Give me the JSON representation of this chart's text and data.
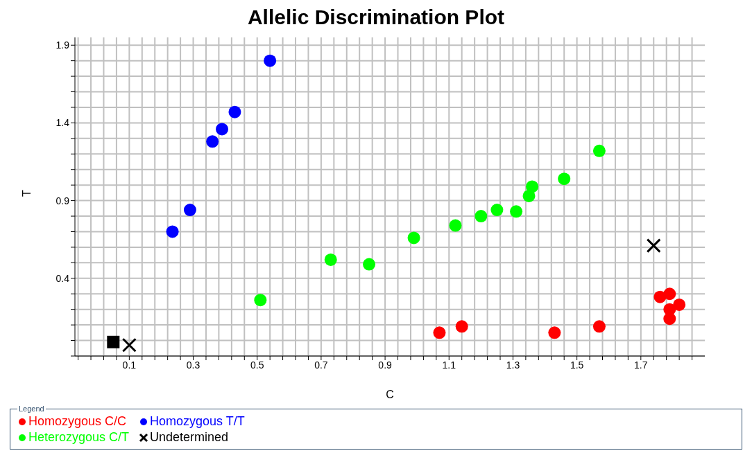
{
  "chart_data": {
    "type": "scatter",
    "title": "Allelic Discrimination Plot",
    "xlabel": "C",
    "ylabel": "T",
    "legend_title": "Legend",
    "legend": "bottom",
    "grid": true,
    "marker": "circle",
    "xlim": [
      -0.07,
      1.9
    ],
    "ylim": [
      -0.1,
      1.95
    ],
    "xticks": [
      {
        "value": -0.06,
        "label": null
      },
      {
        "value": -0.02,
        "label": null
      },
      {
        "value": 0.02,
        "label": null
      },
      {
        "value": 0.06,
        "label": null
      },
      0.1,
      {
        "value": 0.14,
        "label": null
      },
      {
        "value": 0.18,
        "label": null
      },
      {
        "value": 0.22,
        "label": null
      },
      {
        "value": 0.26,
        "label": null
      },
      0.3,
      {
        "value": 0.34,
        "label": null
      },
      {
        "value": 0.38,
        "label": null
      },
      {
        "value": 0.42,
        "label": null
      },
      {
        "value": 0.46,
        "label": null
      },
      0.5,
      {
        "value": 0.54,
        "label": null
      },
      {
        "value": 0.58,
        "label": null
      },
      {
        "value": 0.62,
        "label": null
      },
      {
        "value": 0.66,
        "label": null
      },
      0.7,
      {
        "value": 0.74,
        "label": null
      },
      {
        "value": 0.78,
        "label": null
      },
      {
        "value": 0.82,
        "label": null
      },
      {
        "value": 0.86,
        "label": null
      },
      0.9,
      {
        "value": 0.94,
        "label": null
      },
      {
        "value": 0.98,
        "label": null
      },
      {
        "value": 1.02,
        "label": null
      },
      {
        "value": 1.06,
        "label": null
      },
      1.1,
      {
        "value": 1.14,
        "label": null
      },
      {
        "value": 1.18,
        "label": null
      },
      {
        "value": 1.22,
        "label": null
      },
      {
        "value": 1.26,
        "label": null
      },
      1.3,
      {
        "value": 1.34,
        "label": null
      },
      {
        "value": 1.38,
        "label": null
      },
      {
        "value": 1.42,
        "label": null
      },
      {
        "value": 1.46,
        "label": null
      },
      1.5,
      {
        "value": 1.54,
        "label": null
      },
      {
        "value": 1.58,
        "label": null
      },
      {
        "value": 1.62,
        "label": null
      },
      {
        "value": 1.66,
        "label": null
      },
      1.7,
      {
        "value": 1.74,
        "label": null
      },
      {
        "value": 1.78,
        "label": null
      },
      {
        "value": 1.82,
        "label": null
      },
      {
        "value": 1.86,
        "label": null
      }
    ],
    "yticks": [
      {
        "value": -0.1,
        "label": null
      },
      {
        "value": 0,
        "label": null
      },
      {
        "value": 0.1,
        "label": null
      },
      {
        "value": 0.2,
        "label": null
      },
      {
        "value": 0.3,
        "label": null
      },
      0.4,
      {
        "value": 0.5,
        "label": null
      },
      {
        "value": 0.6,
        "label": null
      },
      {
        "value": 0.7,
        "label": null
      },
      {
        "value": 0.8,
        "label": null
      },
      0.9,
      {
        "value": 1.0,
        "label": null
      },
      {
        "value": 1.1,
        "label": null
      },
      {
        "value": 1.2,
        "label": null
      },
      {
        "value": 1.3,
        "label": null
      },
      1.4,
      {
        "value": 1.5,
        "label": null
      },
      {
        "value": 1.6,
        "label": null
      },
      {
        "value": 1.7,
        "label": null
      },
      {
        "value": 1.8,
        "label": null
      },
      1.9
    ],
    "series": [
      {
        "name": "Homozygous C/C",
        "color": "#ff0000",
        "x": [
          1.07,
          1.14,
          1.43,
          1.57,
          1.76,
          1.79,
          1.82,
          1.79,
          1.79
        ],
        "values": [
          0.05,
          0.09,
          0.05,
          0.09,
          0.28,
          0.3,
          0.23,
          0.2,
          0.14
        ]
      },
      {
        "name": "Homozygous T/T",
        "color": "#0000ff",
        "x": [
          0.235,
          0.29,
          0.36,
          0.39,
          0.43,
          0.54
        ],
        "values": [
          0.7,
          0.84,
          1.28,
          1.36,
          1.47,
          1.8
        ]
      },
      {
        "name": "Heterozygous C/T",
        "color": "#00ff00",
        "x": [
          0.51,
          0.73,
          0.85,
          0.99,
          1.12,
          1.2,
          1.25,
          1.31,
          1.35,
          1.36,
          1.46,
          1.57
        ],
        "values": [
          0.26,
          0.52,
          0.49,
          0.66,
          0.74,
          0.8,
          0.84,
          0.83,
          0.93,
          0.99,
          1.04,
          1.22
        ]
      },
      {
        "name": "Undetermined",
        "color": "#000000",
        "marker": "cross",
        "x": [
          1.74,
          0.1
        ],
        "values": [
          0.61,
          -0.03
        ]
      },
      {
        "color": "#000000",
        "marker": "square",
        "x": [
          0.05
        ],
        "values": [
          -0.01
        ]
      }
    ]
  }
}
